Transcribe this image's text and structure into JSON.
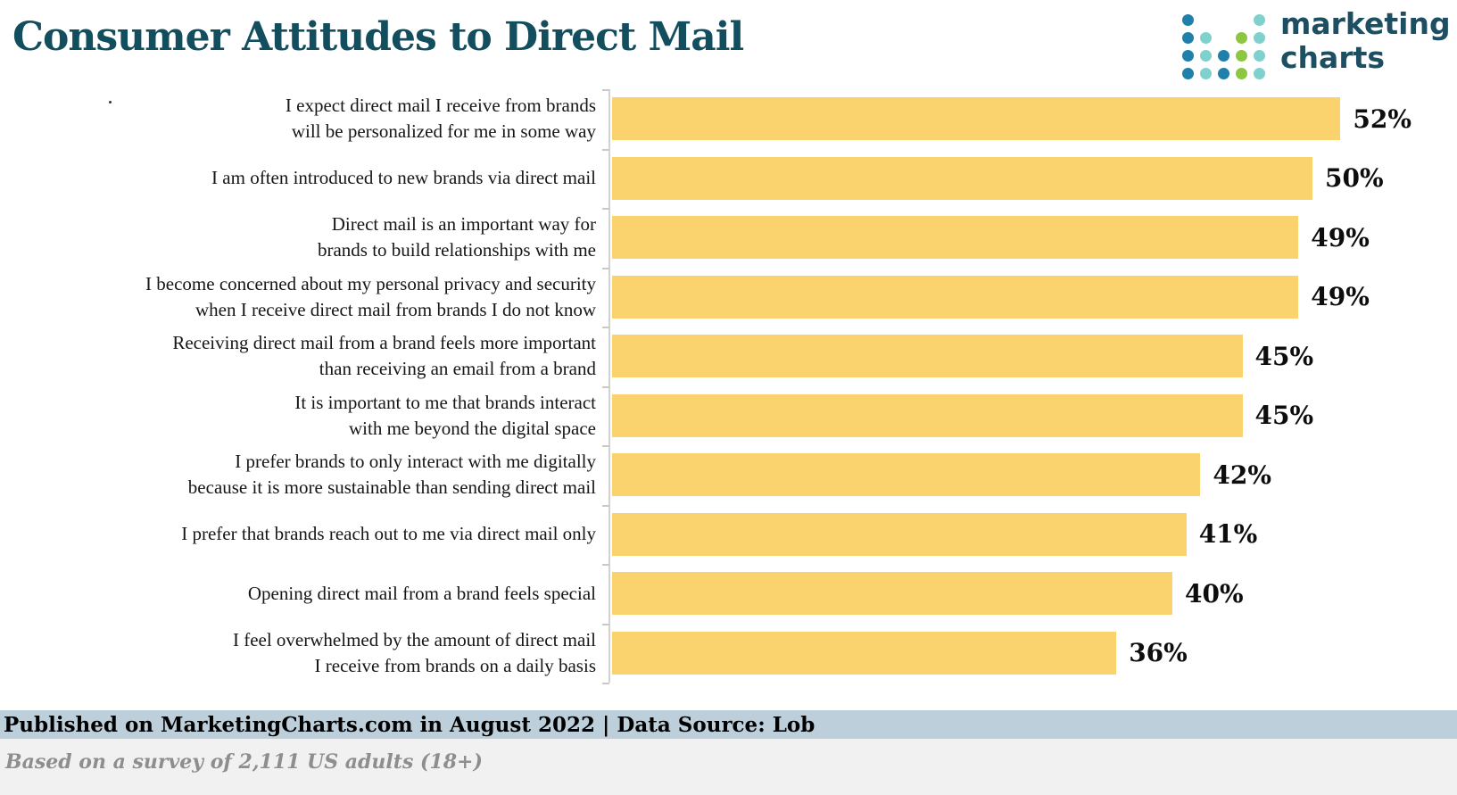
{
  "header": {
    "title": "Consumer Attitudes to Direct Mail"
  },
  "logo": {
    "line1": "marketing",
    "line2": "charts",
    "dot_colors": {
      "d": "#1e80ab",
      "t": "#7fd1cd",
      "g": "#8dc63f"
    },
    "dot_pattern": [
      [
        "d",
        "",
        "",
        "",
        "t"
      ],
      [
        "d",
        "t",
        "",
        "g",
        "t"
      ],
      [
        "d",
        "t",
        "d",
        "g",
        "t"
      ],
      [
        "d",
        "t",
        "d",
        "g",
        "t"
      ]
    ]
  },
  "chart_data": {
    "type": "bar",
    "orientation": "horizontal",
    "title": "Consumer Attitudes to Direct Mail",
    "value_suffix": "%",
    "xlim": [
      0,
      55
    ],
    "grid": false,
    "legend": false,
    "bar_color": "#FBD36E",
    "categories": [
      "I expect direct mail I receive from brands will be personalized for me in some way",
      "I am often introduced to new brands via direct mail",
      "Direct mail is an important way for brands to build relationships with me",
      "I become concerned about my personal privacy and security when I receive direct mail from brands I do not know",
      "Receiving direct mail from a brand feels more important than receiving an email from a brand",
      "It is important to me that brands interact with me beyond the digital space",
      "I prefer brands to only interact with me digitally because it is more sustainable than sending direct mail",
      "I prefer that brands reach out to me via direct mail only",
      "Opening direct mail from a brand feels special",
      "I feel overwhelmed by the amount of direct mail I receive from brands on a daily basis"
    ],
    "label_lines": [
      [
        "I expect direct mail I receive from brands",
        "will be personalized for me in some way"
      ],
      [
        "I am often introduced to new brands via direct mail"
      ],
      [
        "Direct mail is an important way for",
        "brands to build relationships with me"
      ],
      [
        "I become concerned about my personal privacy and security",
        "when I receive direct mail from brands I do not know"
      ],
      [
        "Receiving direct mail from a brand feels more important",
        "than receiving an email from a brand"
      ],
      [
        "It is important to me that brands interact",
        "with me beyond the digital space"
      ],
      [
        "I prefer brands to only interact with me digitally",
        "because it is more sustainable than sending direct mail"
      ],
      [
        "I prefer that brands reach out to me via direct mail only"
      ],
      [
        "Opening direct mail from a brand feels special"
      ],
      [
        "I feel overwhelmed by the amount of direct mail",
        "I receive from brands on a daily basis"
      ]
    ],
    "values": [
      52,
      50,
      49,
      49,
      45,
      45,
      42,
      41,
      40,
      36
    ]
  },
  "footer": {
    "publication": "Published on MarketingCharts.com in August 2022 | Data Source: Lob",
    "survey_note": "Based on a survey of 2,111 US adults (18+)"
  }
}
